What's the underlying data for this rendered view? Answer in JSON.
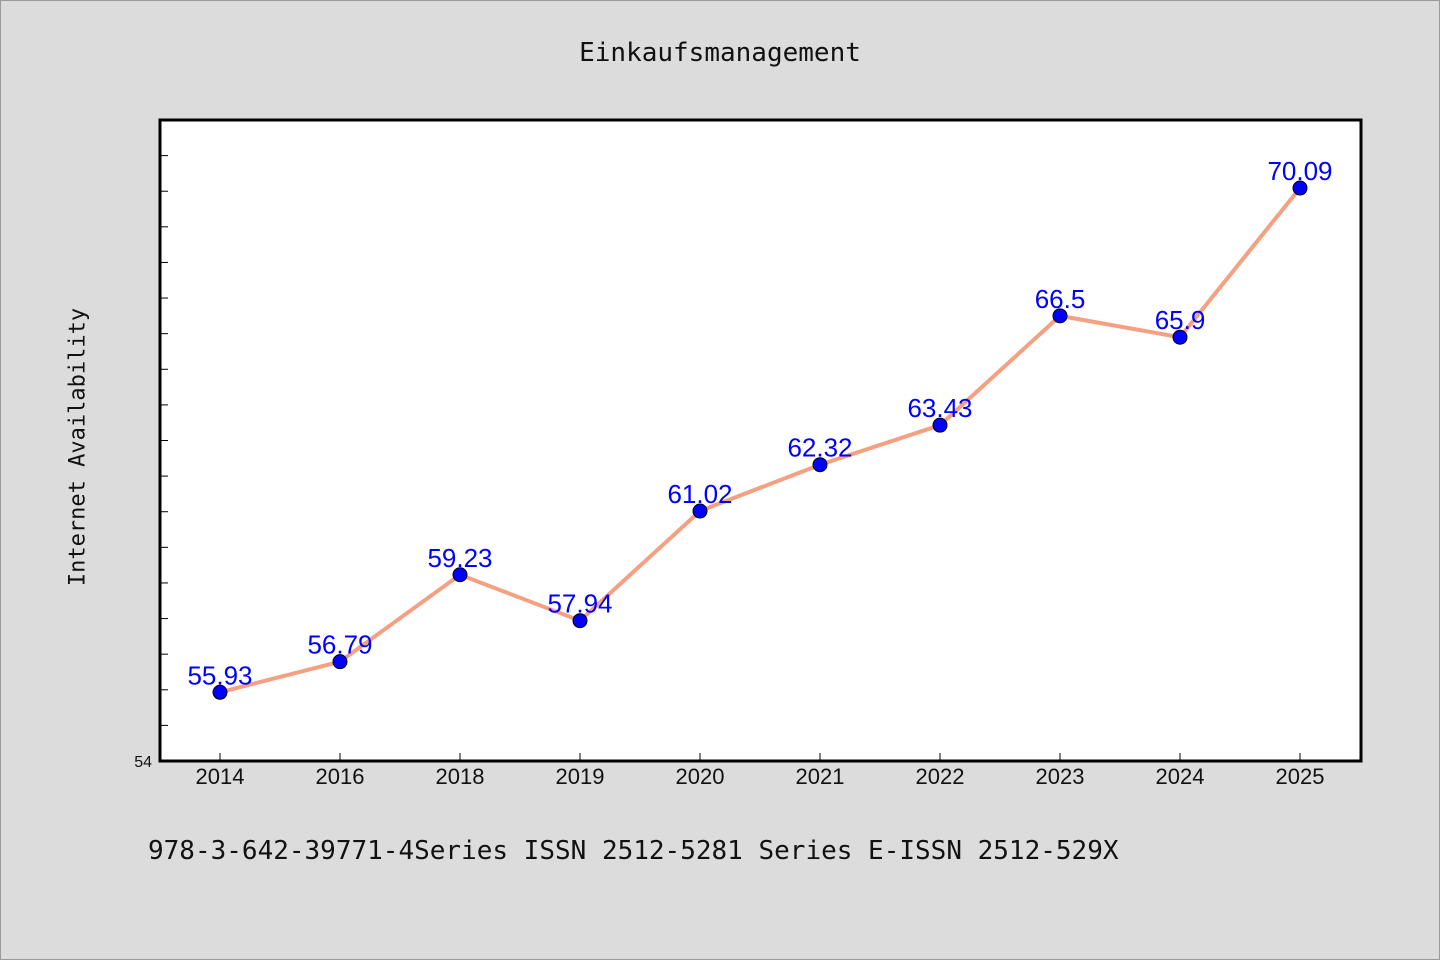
{
  "chart_data": {
    "type": "line",
    "title": "Einkaufsmanagement",
    "xlabel": "",
    "ylabel": "Internet Availability",
    "categories": [
      "2014",
      "2016",
      "2018",
      "2019",
      "2020",
      "2021",
      "2022",
      "2023",
      "2024",
      "2025"
    ],
    "values": [
      55.93,
      56.79,
      59.23,
      57.94,
      61.02,
      62.32,
      63.43,
      66.5,
      65.9,
      70.09
    ],
    "data_labels": [
      "55.93",
      "56.79",
      "59.23",
      "57.94",
      "61.02",
      "62.32",
      "63.43",
      "66.5",
      "65.9",
      "70.09"
    ],
    "ylim": [
      54,
      72
    ],
    "y_tick_labels": [
      "54"
    ],
    "grid": false,
    "line_color": "#f4a081",
    "marker_color": "#0000ff",
    "label_color": "#0000ff"
  },
  "footer": {
    "text": "978-3-642-39771-4Series ISSN 2512-5281 Series E-ISSN 2512-529X"
  }
}
